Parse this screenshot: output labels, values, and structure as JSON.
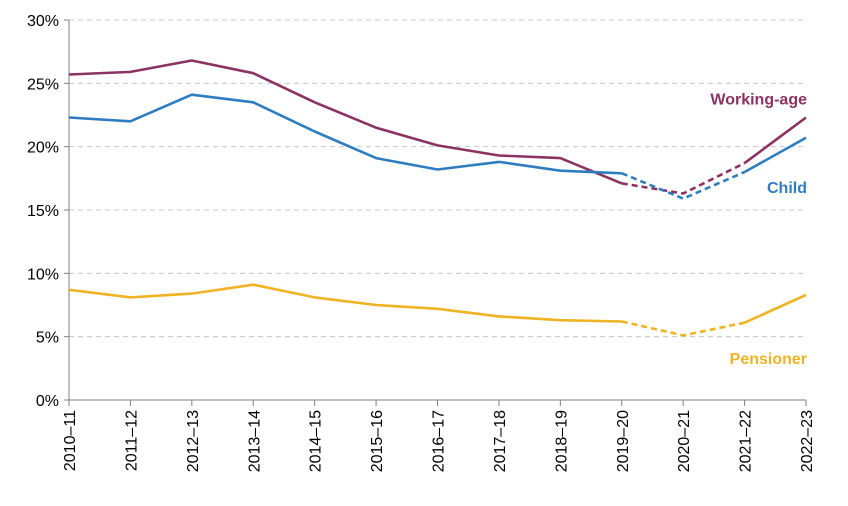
{
  "chart_data": {
    "type": "line",
    "title": "",
    "xlabel": "",
    "ylabel": "",
    "categories": [
      "2010–11",
      "2011–12",
      "2012–13",
      "2013–14",
      "2014–15",
      "2015–16",
      "2016–17",
      "2017–18",
      "2018–19",
      "2019–20",
      "2020–21",
      "2021–22",
      "2022–23"
    ],
    "ylim": [
      0,
      30
    ],
    "yticks": [
      0,
      5,
      10,
      15,
      20,
      25,
      30
    ],
    "ytick_labels": [
      "0%",
      "5%",
      "10%",
      "15%",
      "20%",
      "25%",
      "30%"
    ],
    "grid": true,
    "dashed_segment": [
      "2019–20",
      "2021–22"
    ],
    "series": [
      {
        "name": "Working-age",
        "color": "#8b3362",
        "values": [
          25.7,
          25.9,
          26.8,
          25.8,
          23.5,
          21.5,
          20.1,
          19.3,
          19.1,
          17.1,
          16.3,
          18.7,
          22.3
        ]
      },
      {
        "name": "Child",
        "color": "#2f7dc1",
        "values": [
          22.3,
          22.0,
          24.1,
          23.5,
          21.2,
          19.1,
          18.2,
          18.8,
          18.1,
          17.9,
          15.9,
          18.0,
          20.7
        ]
      },
      {
        "name": "Pensioner",
        "color": "#f0b323",
        "values": [
          8.7,
          8.1,
          8.4,
          9.1,
          8.1,
          7.5,
          7.2,
          6.6,
          6.3,
          6.2,
          5.1,
          6.1,
          8.3
        ]
      }
    ]
  }
}
